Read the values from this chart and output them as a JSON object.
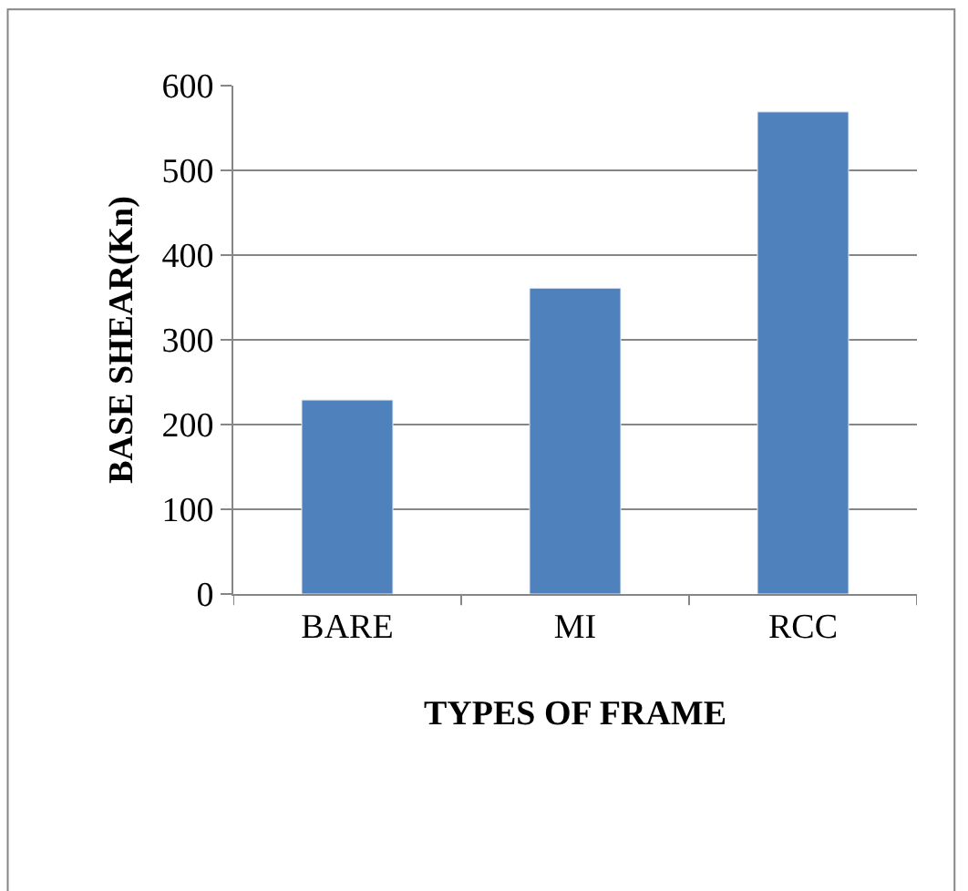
{
  "chart_data": {
    "type": "bar",
    "xlabel": "TYPES OF FRAME",
    "ylabel": "BASE SHEAR(Kn)",
    "categories": [
      "BARE",
      "MI",
      "RCC"
    ],
    "values": [
      229,
      361,
      569
    ],
    "color": "#4f81bd",
    "ylim": [
      0,
      600
    ],
    "yticks": [
      0,
      100,
      200,
      300,
      400,
      500,
      600
    ],
    "grid": "y",
    "legend": false
  }
}
